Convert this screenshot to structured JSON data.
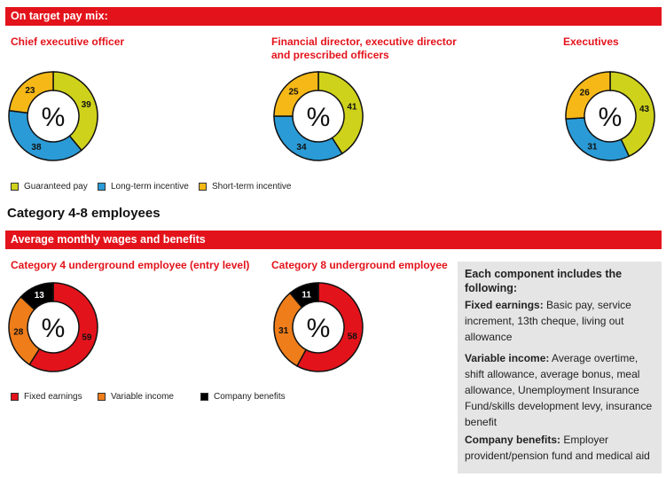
{
  "section1": {
    "band_title": "On target pay mix:"
  },
  "section2": {
    "heading": "Category 4-8 employees",
    "band_title": "Average monthly wages and benefits"
  },
  "colors": {
    "guaranteed": "#cfd21a",
    "lti": "#2a9bd6",
    "sti": "#f6b817",
    "fixed": "#e3131b",
    "variable": "#ef7d1a",
    "benefits": "#000000"
  },
  "chart_data": [
    {
      "type": "pie",
      "title": "Chief executive officer",
      "center_label": "%",
      "slices": [
        {
          "label": "Guaranteed pay",
          "value": 39,
          "color": "#cfd21a"
        },
        {
          "label": "Long-term incentive",
          "value": 38,
          "color": "#2a9bd6"
        },
        {
          "label": "Short-term incentive",
          "value": 23,
          "color": "#f6b817"
        }
      ]
    },
    {
      "type": "pie",
      "title": "Financial director, executive director",
      "title2": "and prescribed officers",
      "center_label": "%",
      "slices": [
        {
          "label": "Guaranteed pay",
          "value": 41,
          "color": "#cfd21a"
        },
        {
          "label": "Long-term incentive",
          "value": 34,
          "color": "#2a9bd6"
        },
        {
          "label": "Short-term incentive",
          "value": 25,
          "color": "#f6b817"
        }
      ]
    },
    {
      "type": "pie",
      "title": "Executives",
      "center_label": "%",
      "slices": [
        {
          "label": "Guaranteed pay",
          "value": 43,
          "color": "#cfd21a"
        },
        {
          "label": "Long-term incentive",
          "value": 31,
          "color": "#2a9bd6"
        },
        {
          "label": "Short-term incentive",
          "value": 26,
          "color": "#f6b817"
        }
      ]
    },
    {
      "type": "pie",
      "title": "Category 4 underground employee (entry level)",
      "center_label": "%",
      "slices": [
        {
          "label": "Fixed earnings",
          "value": 59,
          "color": "#e3131b"
        },
        {
          "label": "Variable income",
          "value": 28,
          "color": "#ef7d1a"
        },
        {
          "label": "Company benefits",
          "value": 13,
          "color": "#000000"
        }
      ]
    },
    {
      "type": "pie",
      "title": "Category 8 underground employee",
      "center_label": "%",
      "slices": [
        {
          "label": "Fixed earnings",
          "value": 58,
          "color": "#e3131b"
        },
        {
          "label": "Variable income",
          "value": 31,
          "color": "#ef7d1a"
        },
        {
          "label": "Company benefits",
          "value": 11,
          "color": "#000000"
        }
      ]
    }
  ],
  "legend1": [
    {
      "label": "Guaranteed pay",
      "color": "#cfd21a"
    },
    {
      "label": "Long-term incentive",
      "color": "#2a9bd6"
    },
    {
      "label": "Short-term incentive",
      "color": "#f6b817"
    }
  ],
  "legend2": [
    {
      "label": "Fixed earnings",
      "color": "#e3131b"
    },
    {
      "label": "Variable income",
      "color": "#ef7d1a"
    },
    {
      "label": "Company benefits",
      "color": "#000000"
    }
  ],
  "infobox": {
    "title": "Each component includes the following:",
    "fixed_label": "Fixed earnings:",
    "fixed_text": " Basic pay, service increment, 13th cheque, living out allowance",
    "variable_label": "Variable income:",
    "variable_text": " Average overtime, shift allowance, average bonus, meal allowance, Unemployment Insurance Fund/skills development levy, insurance benefit",
    "benefits_label": "Company benefits:",
    "benefits_text": " Employer provident/pension fund and medical aid"
  }
}
